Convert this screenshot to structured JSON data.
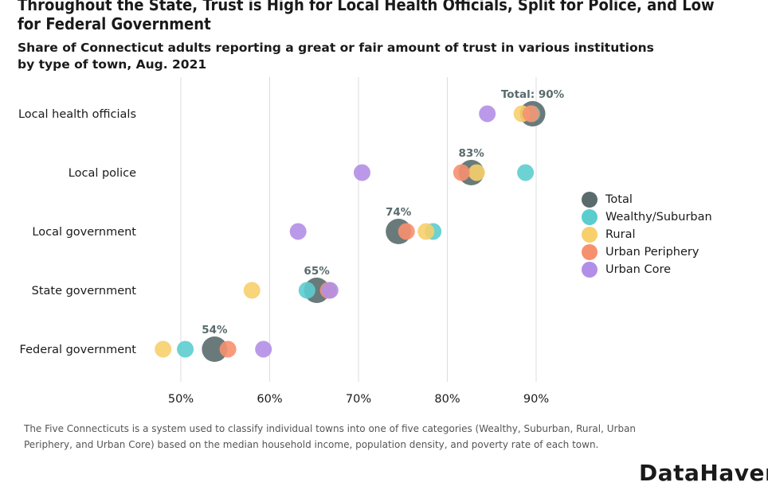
{
  "title": "Throughout the State, Trust is High for Local Health Officials, Split for Police, and Low for Federal Government",
  "subtitle": "Share of Connecticut adults reporting a great or fair amount of trust in various institutions by type of town, Aug. 2021",
  "note": "The Five Connecticuts is a system used to classify individual towns into one of five categories (Wealthy, Suburban, Rural, Urban Periphery, and Urban Core) based on the median household income, population density, and poverty rate of each town.",
  "brand": "DataHaven",
  "chart_data": {
    "type": "scatter",
    "categories": [
      "Local health officials",
      "Local police",
      "Local government",
      "State government",
      "Federal government"
    ],
    "x_ticks": [
      50,
      60,
      70,
      80,
      90
    ],
    "x_tick_labels": [
      "50%",
      "60%",
      "70%",
      "80%",
      "90%"
    ],
    "xlim": [
      45,
      93
    ],
    "grid": true,
    "legend_position": "right",
    "total_labels": [
      "Total: 90%",
      "83%",
      "74%",
      "65%",
      "54%"
    ],
    "series": [
      {
        "name": "Total",
        "color": "#5a6b6d",
        "values": [
          89.6,
          82.7,
          74.5,
          65.3,
          53.8
        ]
      },
      {
        "name": "Wealthy/Suburban",
        "color": "#5ccdcf",
        "values": [
          89.5,
          88.8,
          78.4,
          64.2,
          50.5
        ]
      },
      {
        "name": "Rural",
        "color": "#f7cf6b",
        "values": [
          88.4,
          83.3,
          77.6,
          58.0,
          48.0
        ]
      },
      {
        "name": "Urban Periphery",
        "color": "#f7906f",
        "values": [
          89.4,
          81.6,
          75.4,
          66.6,
          55.3
        ]
      },
      {
        "name": "Urban Core",
        "color": "#b28fe6",
        "values": [
          84.5,
          70.4,
          63.2,
          66.8,
          59.3
        ]
      }
    ]
  }
}
